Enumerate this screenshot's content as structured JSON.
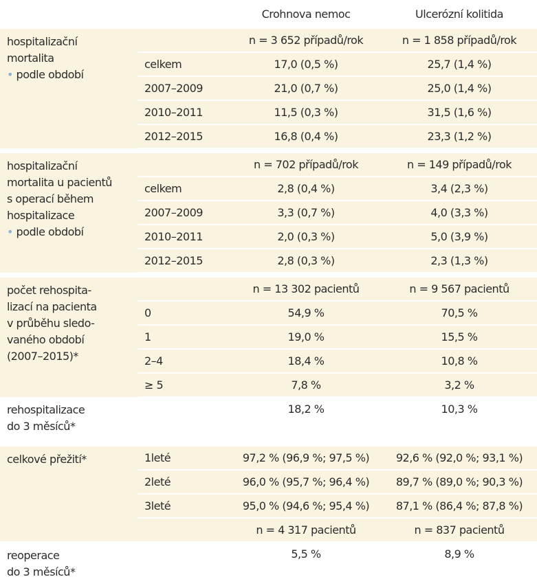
{
  "header": {
    "col_crohn": "Crohnova nemoc",
    "col_uc": "Ulcerózní kolitida"
  },
  "groups": [
    {
      "label_lines": "hospitalizační\nmortalita",
      "bullet": "•",
      "bullet_text": "podle období",
      "counts": {
        "crohn": "n = 3 652 případů/rok",
        "uc": "n = 1 858 případů/rok"
      },
      "rows": [
        {
          "sub": "celkem",
          "crohn": "17,0 (0,5 %)",
          "uc": "25,7 (1,4 %)"
        },
        {
          "sub": "2007–2009",
          "crohn": "21,0 (0,7 %)",
          "uc": "25,0 (1,4 %)"
        },
        {
          "sub": "2010–2011",
          "crohn": "11,5 (0,3 %)",
          "uc": "31,5 (1,6 %)"
        },
        {
          "sub": "2012–2015",
          "crohn": "16,8 (0,4 %)",
          "uc": "23,3 (1,2 %)"
        }
      ]
    },
    {
      "label_lines": "hospitalizační\nmortalita u pacientů\ns operací během\nhospitalizace",
      "bullet": "•",
      "bullet_text": "podle období",
      "counts": {
        "crohn": "n = 702 případů/rok",
        "uc": "n = 149 případů/rok"
      },
      "rows": [
        {
          "sub": "celkem",
          "crohn": "2,8 (0,4 %)",
          "uc": "3,4 (2,3 %)"
        },
        {
          "sub": "2007–2009",
          "crohn": "3,3 (0,7 %)",
          "uc": "4,0 (3,3 %)"
        },
        {
          "sub": "2010–2011",
          "crohn": "2,0 (0,3 %)",
          "uc": "5,0 (3,9 %)"
        },
        {
          "sub": "2012–2015",
          "crohn": "2,8 (0,3 %)",
          "uc": "2,3 (1,3 %)"
        }
      ]
    },
    {
      "label_lines": "počet rehospita-\nlizací na pacienta\nv průběhu sledo-\nvaného období\n(2007–2015)*",
      "counts": {
        "crohn": "n = 13 302 pacientů",
        "uc": "n = 9 567 pacientů"
      },
      "rows": [
        {
          "sub": "0",
          "crohn": "54,9 %",
          "uc": "70,5 %"
        },
        {
          "sub": "1",
          "crohn": "19,0 %",
          "uc": "15,5 %"
        },
        {
          "sub": "2–4",
          "crohn": "18,4 %",
          "uc": "10,8 %"
        },
        {
          "sub": "≥ 5",
          "crohn": "7,8 %",
          "uc": "3,2 %"
        }
      ]
    },
    {
      "label_lines": "rehospitalizace\ndo 3 měsíců*",
      "values": {
        "crohn": "18,2 %",
        "uc": "10,3 %"
      }
    },
    {
      "label_lines": "celkové přežití*",
      "rows": [
        {
          "sub": "1leté",
          "crohn": "97,2 % (96,9 %; 97,5 %)",
          "uc": "92,6 % (92,0 %; 93,1 %)"
        },
        {
          "sub": "2leté",
          "crohn": "96,0 % (95,7 %; 96,4 %)",
          "uc": "89,7 % (89,0 %; 90,3 %)"
        },
        {
          "sub": "3leté",
          "crohn": "95,0 % (94,6 %; 95,4 %)",
          "uc": "87,1 % (86,4 %; 87,8 %)"
        }
      ],
      "counts_after": {
        "crohn": "n = 4 317 pacientů",
        "uc": "n = 837 pacientů"
      }
    },
    {
      "label_lines": "reoperace\ndo 3 měsíců*",
      "values": {
        "crohn": "5,5 %",
        "uc": "8,9 %"
      }
    }
  ],
  "colors": {
    "band": "#f9f3e0",
    "bullet": "#8ab3d4",
    "text": "#2b2b2b"
  }
}
